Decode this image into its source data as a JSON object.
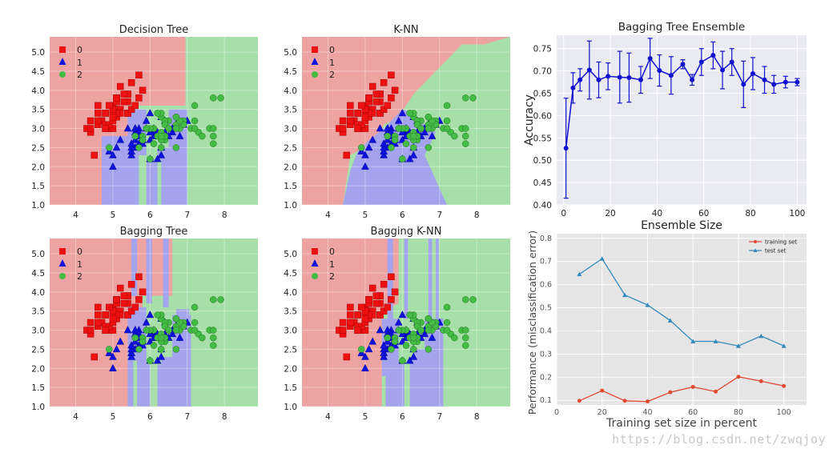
{
  "watermark": "https://blog.csdn.net/zwqjoy",
  "colors": {
    "region_0": "#eea3a3",
    "region_1": "#a3a3ee",
    "region_2": "#a7dfa9",
    "marker_0": "#ee1111",
    "marker_1": "#1111dd",
    "marker_2": "#44bb44",
    "ensemble_line": "#1010d0",
    "train_line": "#e24a33",
    "test_line": "#348abd",
    "axes_bg_ensemble": "#eaeaf2",
    "axes_bg_learning": "#e5e5e5"
  },
  "chart_data": [
    {
      "type": "scatter",
      "title": "Decision Tree",
      "xlim": [
        3.3,
        8.9
      ],
      "ylim": [
        1.0,
        5.4
      ],
      "xticks": [
        4,
        5,
        6,
        7,
        8
      ],
      "yticks": [
        1.0,
        1.5,
        2.0,
        2.5,
        3.0,
        3.5,
        4.0,
        4.5,
        5.0
      ],
      "legend": [
        "0",
        "1",
        "2"
      ],
      "background": "decision regions for classes 0 (red), 1 (blue), 2 (green)"
    },
    {
      "type": "scatter",
      "title": "K-NN",
      "xlim": [
        3.3,
        8.9
      ],
      "ylim": [
        1.0,
        5.4
      ],
      "xticks": [
        4,
        5,
        6,
        7,
        8
      ],
      "yticks": [
        1.0,
        1.5,
        2.0,
        2.5,
        3.0,
        3.5,
        4.0,
        4.5,
        5.0
      ],
      "legend": [
        "0",
        "1",
        "2"
      ]
    },
    {
      "type": "scatter",
      "title": "Bagging Tree",
      "xlim": [
        3.3,
        8.9
      ],
      "ylim": [
        1.0,
        5.4
      ],
      "xticks": [
        4,
        5,
        6,
        7,
        8
      ],
      "yticks": [
        1.0,
        1.5,
        2.0,
        2.5,
        3.0,
        3.5,
        4.0,
        4.5,
        5.0
      ],
      "legend": [
        "0",
        "1",
        "2"
      ]
    },
    {
      "type": "scatter",
      "title": "Bagging K-NN",
      "xlim": [
        3.3,
        8.9
      ],
      "ylim": [
        1.0,
        5.4
      ],
      "xticks": [
        4,
        5,
        6,
        7,
        8
      ],
      "yticks": [
        1.0,
        1.5,
        2.0,
        2.5,
        3.0,
        3.5,
        4.0,
        4.5,
        5.0
      ],
      "legend": [
        "0",
        "1",
        "2"
      ]
    },
    {
      "type": "line",
      "title": "Bagging Tree Ensemble",
      "xlabel": "Ensemble Size",
      "ylabel": "Accuracy",
      "xlim": [
        -3,
        104
      ],
      "ylim": [
        0.4,
        0.78
      ],
      "xticks": [
        0,
        20,
        40,
        60,
        80,
        100
      ],
      "yticks": [
        0.4,
        0.45,
        0.5,
        0.55,
        0.6,
        0.65,
        0.7,
        0.75
      ],
      "x": [
        1,
        4,
        7,
        11,
        15,
        19,
        24,
        28,
        33,
        37,
        41,
        46,
        51,
        55,
        59,
        64,
        68,
        72,
        77,
        81,
        86,
        90,
        95,
        100
      ],
      "y": [
        0.527,
        0.662,
        0.68,
        0.702,
        0.68,
        0.688,
        0.686,
        0.685,
        0.68,
        0.728,
        0.701,
        0.69,
        0.715,
        0.68,
        0.72,
        0.735,
        0.702,
        0.72,
        0.67,
        0.694,
        0.68,
        0.67,
        0.675,
        0.675
      ],
      "err": [
        0.112,
        0.034,
        0.025,
        0.065,
        0.04,
        0.03,
        0.058,
        0.055,
        0.03,
        0.045,
        0.035,
        0.042,
        0.01,
        0.012,
        0.03,
        0.03,
        0.042,
        0.03,
        0.052,
        0.036,
        0.03,
        0.02,
        0.013,
        0.008
      ],
      "grid": true
    },
    {
      "type": "line",
      "xlabel": "Training set size in percent",
      "ylabel": "Performance (misclassification error)",
      "xlim": [
        0,
        110
      ],
      "ylim": [
        0.08,
        0.82
      ],
      "xticks": [
        0,
        20,
        40,
        60,
        80,
        100
      ],
      "yticks": [
        0.1,
        0.2,
        0.3,
        0.4,
        0.5,
        0.6,
        0.7,
        0.8
      ],
      "x": [
        10,
        20,
        30,
        40,
        50,
        60,
        70,
        80,
        90,
        100
      ],
      "series": [
        {
          "name": "training set",
          "values": [
            0.098,
            0.142,
            0.098,
            0.095,
            0.135,
            0.158,
            0.138,
            0.202,
            0.183,
            0.162
          ]
        },
        {
          "name": "test set",
          "values": [
            0.645,
            0.712,
            0.555,
            0.512,
            0.445,
            0.355,
            0.355,
            0.335,
            0.378,
            0.335
          ]
        }
      ],
      "legend_position": "top-right",
      "grid": true
    }
  ]
}
